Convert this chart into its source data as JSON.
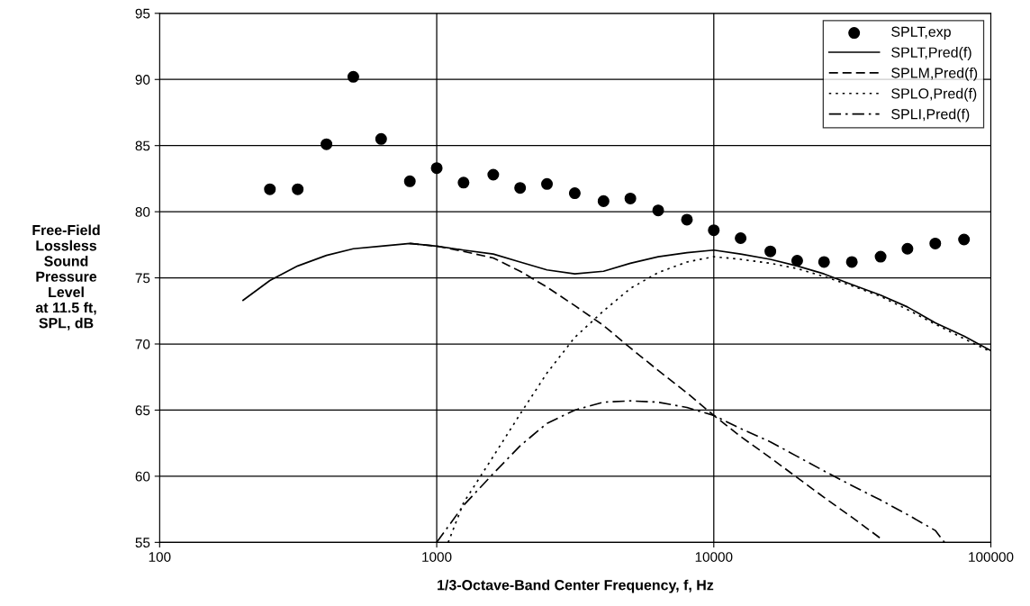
{
  "chart_data": {
    "type": "line",
    "xlabel": "1/3-Octave-Band Center Frequency, f, Hz",
    "ylabel": "Free-Field\nLossless\nSound\nPressure\nLevel\nat 11.5 ft,\nSPL, dB",
    "log": "x",
    "xlim": [
      100,
      100000
    ],
    "ylim": [
      55,
      95
    ],
    "xticks": [
      100,
      1000,
      10000,
      100000
    ],
    "yticks": [
      55,
      60,
      65,
      70,
      75,
      80,
      85,
      90,
      95
    ],
    "grid": true,
    "legend": "top right",
    "series": [
      {
        "name": "SPLT,exp",
        "type": "scatter",
        "marker": "circle",
        "color": "#000000",
        "x": [
          250,
          315,
          400,
          500,
          630,
          800,
          1000,
          1250,
          1600,
          2000,
          2500,
          3150,
          4000,
          5000,
          6300,
          8000,
          10000,
          12500,
          16000,
          20000,
          25000,
          31500,
          40000,
          50000,
          63000,
          80000
        ],
        "values": [
          81.7,
          81.7,
          85.1,
          90.2,
          85.5,
          82.3,
          83.3,
          82.2,
          82.8,
          81.8,
          82.1,
          81.4,
          80.8,
          81.0,
          80.1,
          79.4,
          78.6,
          78.0,
          77.0,
          76.3,
          76.2,
          76.2,
          76.6,
          77.2,
          77.6,
          77.9
        ]
      },
      {
        "name": "SPLT,Pred(f)",
        "line_style": "solid",
        "color": "#000000",
        "x": [
          200,
          250,
          315,
          400,
          500,
          630,
          800,
          1000,
          1250,
          1600,
          2000,
          2500,
          3150,
          4000,
          5000,
          6300,
          8000,
          10000,
          12500,
          16000,
          20000,
          25000,
          31500,
          40000,
          50000,
          63000,
          80000,
          100000
        ],
        "values": [
          73.3,
          74.8,
          75.9,
          76.7,
          77.2,
          77.4,
          77.6,
          77.4,
          77.1,
          76.8,
          76.2,
          75.6,
          75.3,
          75.5,
          76.1,
          76.6,
          76.9,
          77.1,
          76.8,
          76.4,
          75.9,
          75.3,
          74.5,
          73.7,
          72.8,
          71.6,
          70.6,
          69.5
        ]
      },
      {
        "name": "SPLM,Pred(f)",
        "line_style": "dashed",
        "color": "#000000",
        "x": [
          800,
          1000,
          1250,
          1600,
          2000,
          2500,
          3150,
          4000,
          5000,
          6300,
          8000,
          10000,
          12500,
          16000,
          20000,
          25000,
          31500,
          40000
        ],
        "values": [
          77.6,
          77.4,
          77.0,
          76.5,
          75.5,
          74.3,
          72.9,
          71.4,
          69.7,
          68.0,
          66.3,
          64.6,
          63.0,
          61.4,
          59.9,
          58.4,
          56.9,
          55.3
        ]
      },
      {
        "name": "SPLO,Pred(f)",
        "line_style": "dotted",
        "color": "#000000",
        "x": [
          1100,
          1250,
          1600,
          2000,
          2500,
          3150,
          4000,
          5000,
          6300,
          8000,
          10000,
          12500,
          16000,
          20000,
          25000,
          31500,
          40000,
          50000,
          63000,
          80000,
          100000
        ],
        "values": [
          55.0,
          58.0,
          61.5,
          64.7,
          67.8,
          70.5,
          72.5,
          74.2,
          75.4,
          76.2,
          76.6,
          76.4,
          76.1,
          75.7,
          75.1,
          74.4,
          73.6,
          72.6,
          71.5,
          70.4,
          69.4
        ]
      },
      {
        "name": "SPLI,Pred(f)",
        "line_style": "dashdot",
        "color": "#000000",
        "x": [
          1000,
          1250,
          1600,
          2000,
          2500,
          3150,
          4000,
          5000,
          6300,
          8000,
          10000,
          12500,
          16000,
          20000,
          25000,
          31500,
          40000,
          50000,
          63000,
          68000
        ],
        "values": [
          55.0,
          57.8,
          60.2,
          62.3,
          64.0,
          65.0,
          65.6,
          65.7,
          65.6,
          65.2,
          64.6,
          63.6,
          62.6,
          61.5,
          60.4,
          59.3,
          58.2,
          57.1,
          55.9,
          55.0
        ]
      }
    ]
  }
}
